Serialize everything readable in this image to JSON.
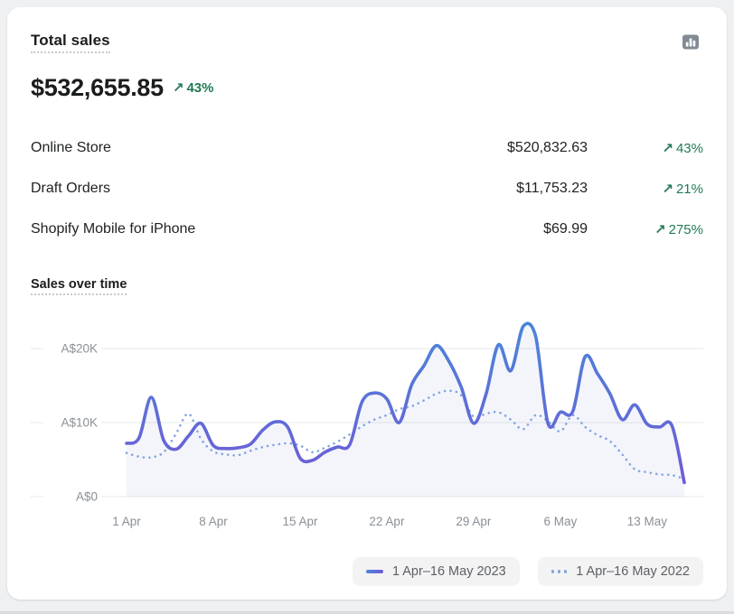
{
  "card": {
    "title": "Total sales",
    "total": "$532,655.85",
    "change": "43%"
  },
  "icons": {
    "trend_up": "↗"
  },
  "breakdown": {
    "rows": [
      {
        "label": "Online Store",
        "value": "$520,832.63",
        "change": "43%"
      },
      {
        "label": "Draft Orders",
        "value": "$11,753.23",
        "change": "21%"
      },
      {
        "label": "Shopify Mobile for iPhone",
        "value": "$69.99",
        "change": "275%"
      }
    ]
  },
  "chart_data": {
    "type": "line",
    "title": "Sales over time",
    "x_unit": "day (1 Apr = day 1)",
    "x_tick_labels": [
      "1 Apr",
      "8 Apr",
      "15 Apr",
      "22 Apr",
      "29 Apr",
      "6 May",
      "13 May"
    ],
    "x_tick_days": [
      1,
      8,
      15,
      22,
      29,
      36,
      43
    ],
    "days_total": 46,
    "y_unit": "AUD thousands",
    "y_ticks": [
      {
        "value": 0,
        "label": "A$0"
      },
      {
        "value": 10,
        "label": "A$10K"
      },
      {
        "value": 20,
        "label": "A$20K"
      }
    ],
    "ylim": [
      0,
      24
    ],
    "grid": "horizontal",
    "legend_position": "bottom",
    "series": [
      {
        "name": "1 Apr–16 May 2023",
        "style": "solid",
        "values": [
          7.2,
          7.9,
          13.4,
          7.6,
          6.4,
          8.2,
          9.9,
          6.9,
          6.5,
          6.6,
          7.1,
          9.0,
          10.1,
          9.4,
          5.2,
          4.9,
          6.0,
          6.7,
          7.0,
          12.8,
          14.0,
          13.2,
          10.0,
          15.1,
          17.7,
          20.4,
          18.3,
          14.8,
          9.9,
          13.8,
          20.5,
          17.0,
          23.0,
          21.7,
          9.9,
          11.4,
          11.5,
          18.9,
          16.6,
          13.9,
          10.4,
          12.4,
          9.8,
          9.4,
          9.6,
          1.9
        ]
      },
      {
        "name": "1 Apr–16 May 2022",
        "style": "dotted",
        "values": [
          5.9,
          5.4,
          5.3,
          6.0,
          8.5,
          11.2,
          7.8,
          6.1,
          5.7,
          5.6,
          6.2,
          6.7,
          7.0,
          7.2,
          6.9,
          6.0,
          6.6,
          7.4,
          8.4,
          9.5,
          10.4,
          11.0,
          11.8,
          12.2,
          13.0,
          13.9,
          14.3,
          13.7,
          10.8,
          11.2,
          11.4,
          10.4,
          9.1,
          11.0,
          10.2,
          8.8,
          11.0,
          9.4,
          8.3,
          7.5,
          5.7,
          3.7,
          3.3,
          3.0,
          2.9,
          2.4
        ]
      }
    ]
  },
  "colors": {
    "accent_green": "#217a55",
    "line_2023_top": "#4a86d9",
    "line_2023_bottom": "#6f5bd6",
    "line_2022": "#84a6de",
    "area_fill": "rgba(99,112,205,0.07)",
    "grid_line": "#e7e8ea",
    "axis_text": "#8a9097",
    "legend_bg": "#f3f3f4",
    "card_bg": "#ffffff",
    "page_bg": "#eef0f2",
    "report_icon_gray": "#828b94"
  }
}
